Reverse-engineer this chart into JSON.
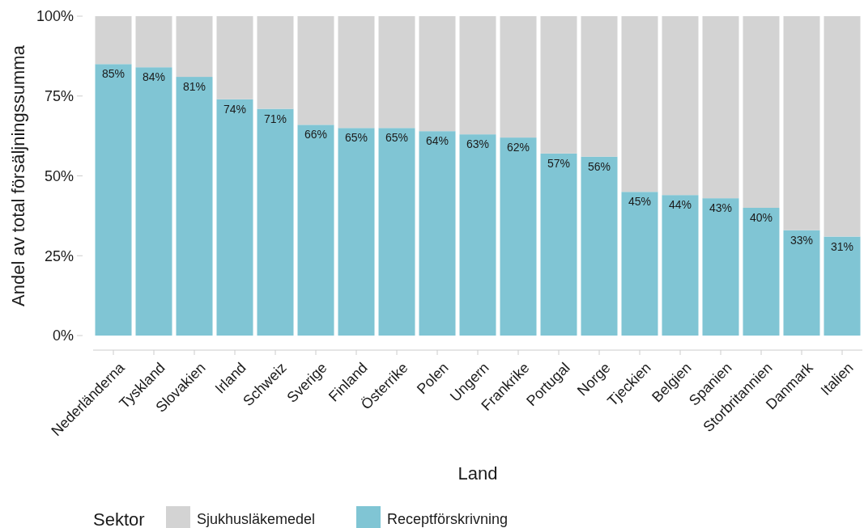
{
  "chart_data": {
    "type": "bar",
    "stacked": true,
    "xlabel": "Land",
    "ylabel": "Andel av total försäljningssumma",
    "legend_title": "Sektor",
    "legend": "bottom",
    "categories": [
      "Nederländerna",
      "Tyskland",
      "Slovakien",
      "Irland",
      "Schweiz",
      "Sverige",
      "Finland",
      "Österrike",
      "Polen",
      "Ungern",
      "Frankrike",
      "Portugal",
      "Norge",
      "Tjeckien",
      "Belgien",
      "Spanien",
      "Storbritannien",
      "Danmark",
      "Italien"
    ],
    "ylim": [
      0,
      100
    ],
    "yticks": [
      {
        "value": 0,
        "label": "0%"
      },
      {
        "value": 25,
        "label": "25%"
      },
      {
        "value": 50,
        "label": "50%"
      },
      {
        "value": 75,
        "label": "75%"
      },
      {
        "value": 100,
        "label": "100%"
      }
    ],
    "series": [
      {
        "name": "Receptförskrivning",
        "color": "#80c5d4",
        "values": [
          85,
          84,
          81,
          74,
          71,
          66,
          65,
          65,
          64,
          63,
          62,
          57,
          56,
          45,
          44,
          43,
          40,
          33,
          31
        ],
        "value_labels": [
          "85%",
          "84%",
          "81%",
          "74%",
          "71%",
          "66%",
          "65%",
          "65%",
          "64%",
          "63%",
          "62%",
          "57%",
          "56%",
          "45%",
          "44%",
          "43%",
          "40%",
          "33%",
          "31%"
        ]
      },
      {
        "name": "Sjukhusläkemedel",
        "color": "#d3d3d3",
        "values": [
          15,
          16,
          19,
          26,
          29,
          34,
          35,
          35,
          36,
          37,
          38,
          43,
          44,
          55,
          56,
          57,
          60,
          67,
          69
        ]
      }
    ]
  }
}
